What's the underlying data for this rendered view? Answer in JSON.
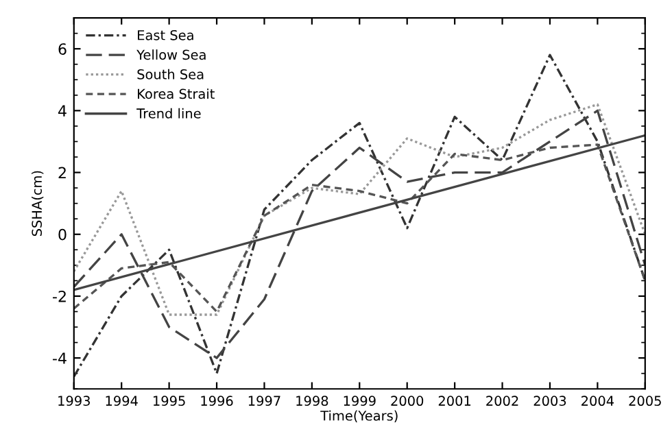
{
  "chart_data": {
    "type": "line",
    "xlabel": "Time(Years)",
    "ylabel": "SSHA(cm)",
    "x": [
      1993,
      1994,
      1995,
      1996,
      1997,
      1998,
      1999,
      2000,
      2001,
      2002,
      2003,
      2004,
      2005
    ],
    "series": [
      {
        "name": "East Sea",
        "color": "#333333",
        "line_style": "dashdot",
        "values": [
          -4.6,
          -2.0,
          -0.5,
          -4.5,
          0.8,
          2.4,
          3.6,
          0.2,
          3.8,
          2.4,
          5.8,
          3.0,
          -1.5
        ]
      },
      {
        "name": "Yellow Sea",
        "color": "#444444",
        "line_style": "longdash",
        "values": [
          -1.7,
          0.0,
          -3.0,
          -4.0,
          -2.1,
          1.4,
          2.8,
          1.7,
          2.0,
          2.0,
          3.0,
          4.0,
          -1.0
        ]
      },
      {
        "name": "South Sea",
        "color": "#999999",
        "line_style": "dotted",
        "values": [
          -1.2,
          1.4,
          -2.6,
          -2.6,
          0.6,
          1.5,
          1.3,
          3.1,
          2.5,
          2.8,
          3.7,
          4.2,
          0.0
        ]
      },
      {
        "name": "Korea Strait",
        "color": "#555555",
        "line_style": "dashed",
        "values": [
          -2.4,
          -1.1,
          -0.9,
          -2.5,
          0.6,
          1.6,
          1.4,
          1.0,
          2.6,
          2.4,
          2.8,
          2.9,
          -1.5
        ]
      },
      {
        "name": "Trend line",
        "color": "#444444",
        "line_style": "solid",
        "x": [
          1993,
          2005
        ],
        "values": [
          -1.8,
          3.2
        ]
      }
    ],
    "xlim": [
      1993,
      2005
    ],
    "xticks": [
      1993,
      1994,
      1995,
      1996,
      1997,
      1998,
      1999,
      2000,
      2001,
      2002,
      2003,
      2004,
      2005
    ],
    "ylim": [
      -5,
      7
    ],
    "yticks": [
      -4,
      -2,
      0,
      2,
      4,
      6
    ],
    "legend": "top left",
    "grid": false
  }
}
